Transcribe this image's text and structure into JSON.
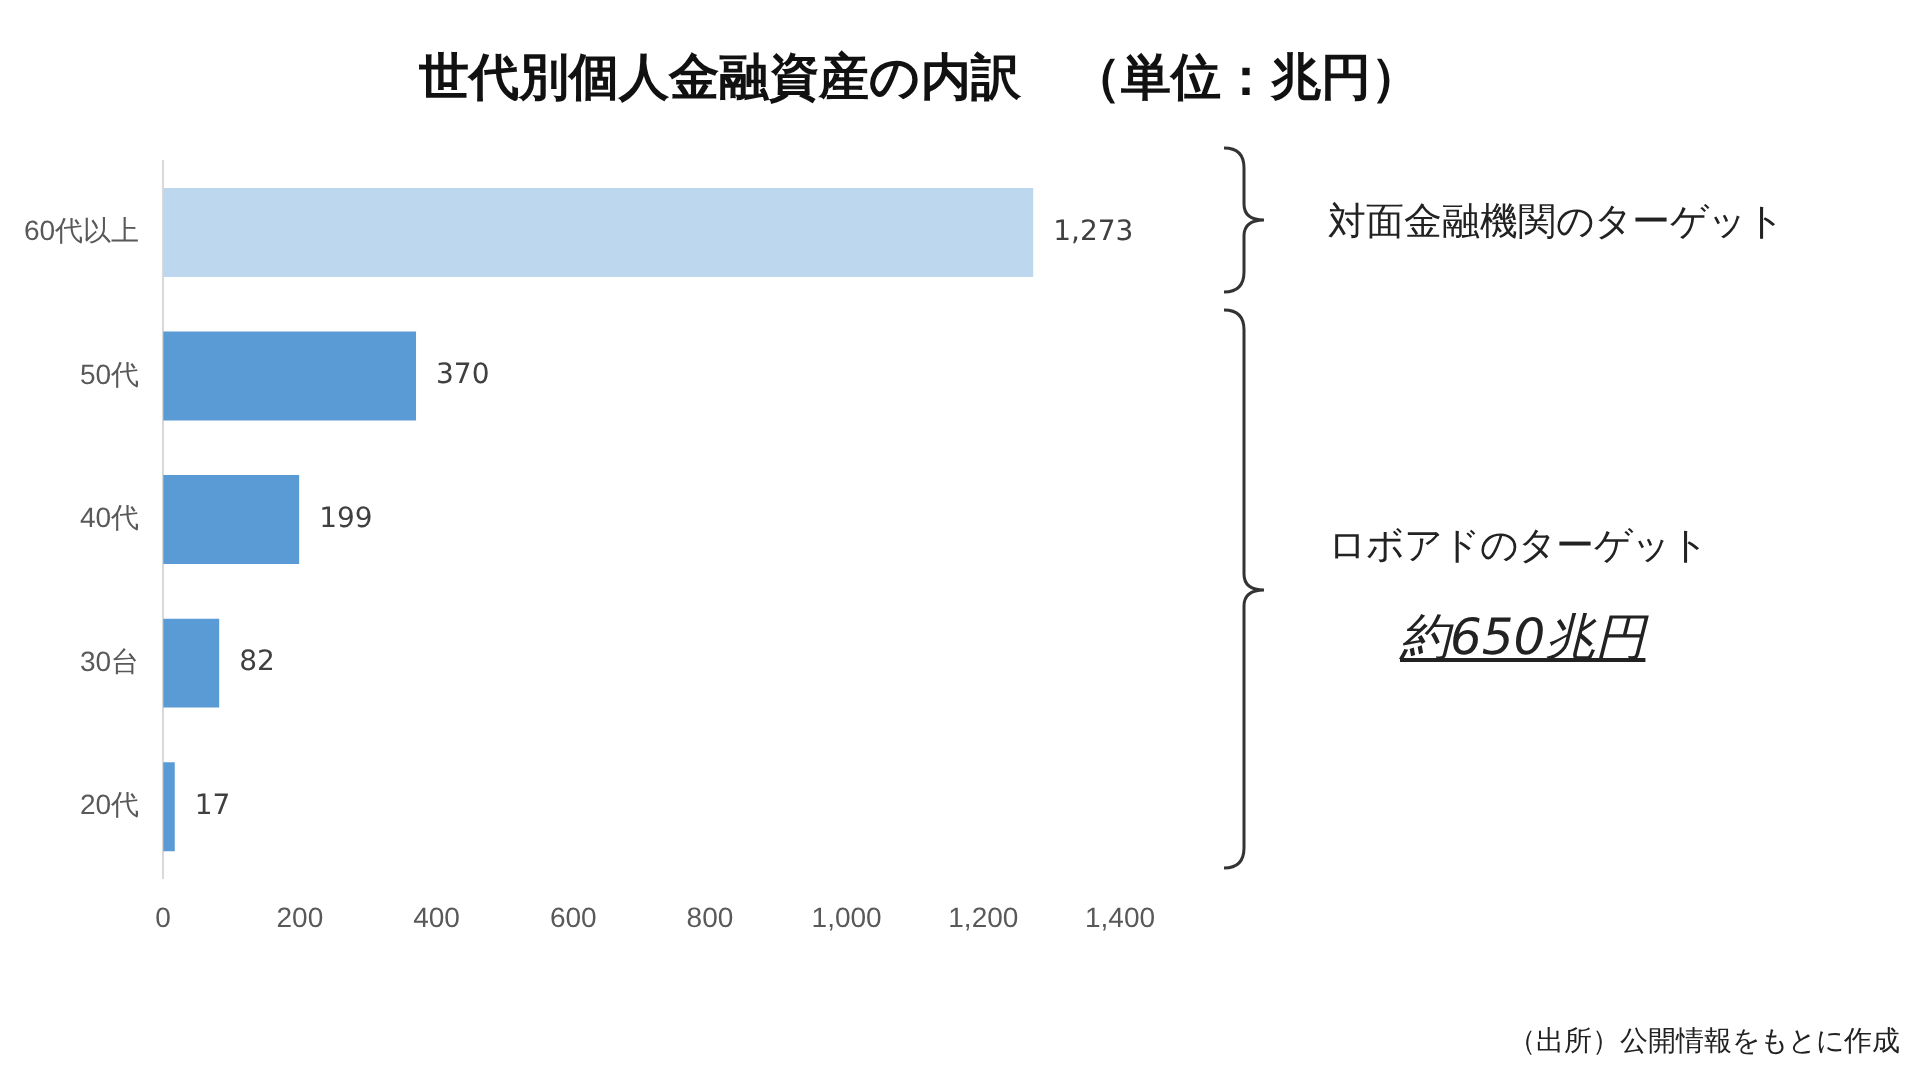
{
  "chart_data": {
    "type": "bar",
    "orientation": "horizontal",
    "title": "世代別個人金融資産の内訳　（単位：兆円）",
    "categories": [
      "60代以上",
      "50代",
      "40代",
      "30台",
      "20代"
    ],
    "values": [
      1273,
      370,
      199,
      82,
      17
    ],
    "colors": [
      "#bdd7ee",
      "#5b9bd5",
      "#5b9bd5",
      "#5b9bd5",
      "#5b9bd5"
    ],
    "value_labels": [
      "1,273",
      "370",
      "199",
      "82",
      "17"
    ],
    "xlim": [
      0,
      1400
    ],
    "xticks": [
      0,
      200,
      400,
      600,
      800,
      {
        "value": 1000,
        "label": "1,000"
      },
      {
        "value": 1200,
        "label": "1,200"
      },
      {
        "value": 1400,
        "label": "1,400"
      }
    ],
    "grid": false,
    "legend": false,
    "annotations": [
      "対面金融機関のターゲット",
      "ロボアドのターゲット",
      "約650兆円",
      "（出所）公開情報をもとに作成"
    ]
  }
}
